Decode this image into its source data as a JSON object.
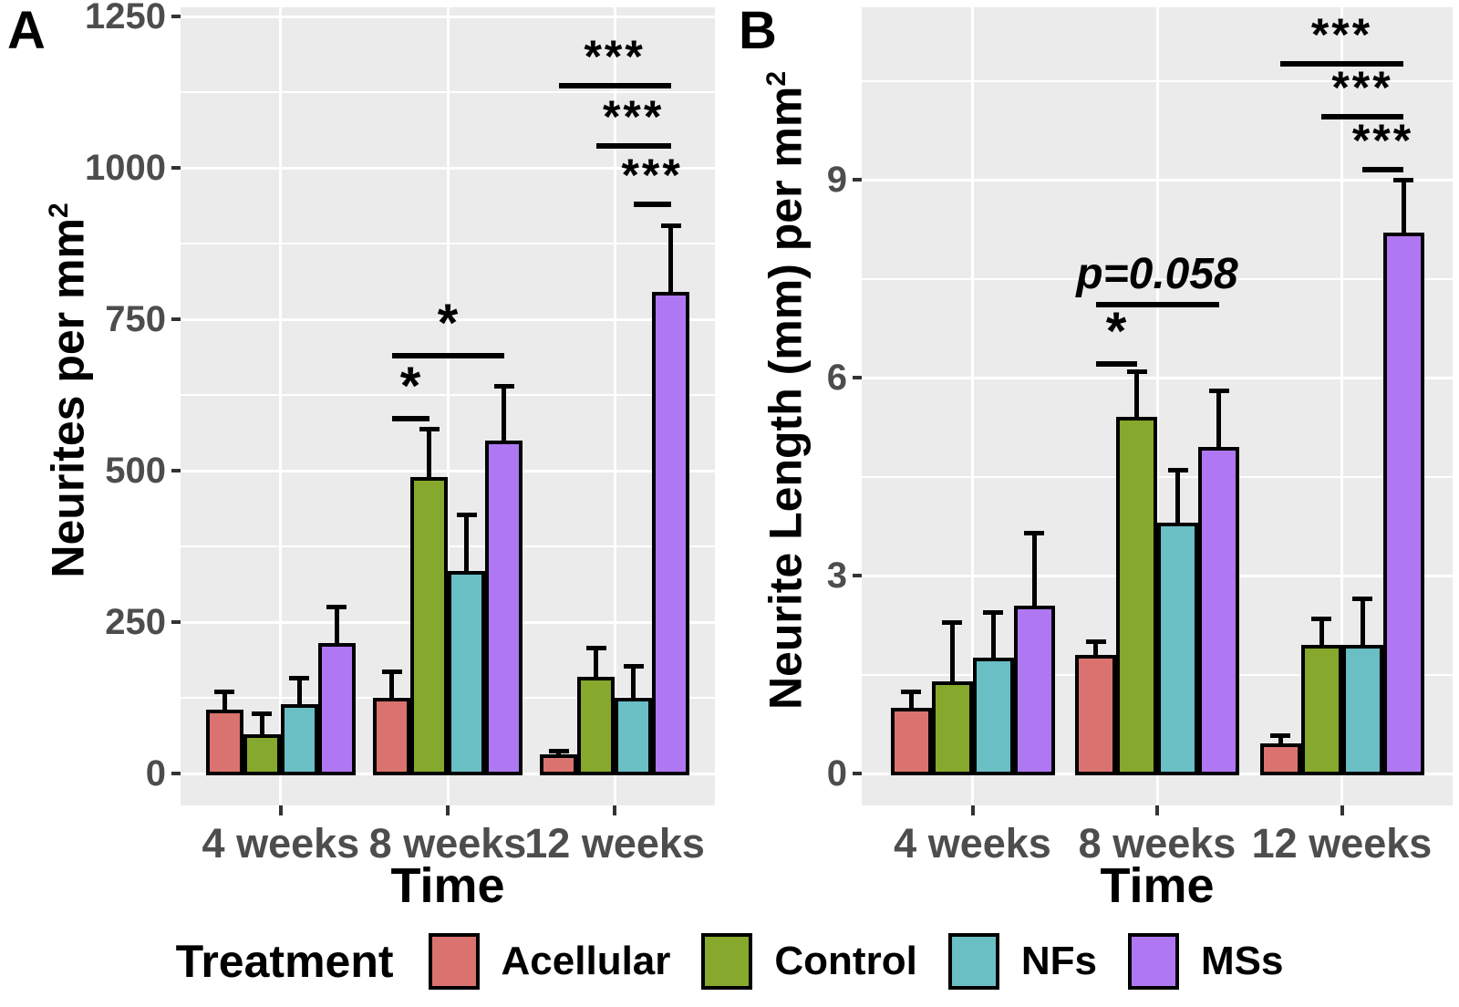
{
  "panel_letters": [
    "A",
    "B"
  ],
  "colors": {
    "panel_background": "#EBEBEB",
    "gridline": "#FFFFFF",
    "tick_text": "#4D4D4D",
    "annotation": "#000000"
  },
  "legend": {
    "title": "Treatment",
    "items": [
      {
        "label": "Acellular",
        "color": "#DA7370"
      },
      {
        "label": "Control",
        "color": "#86A82D"
      },
      {
        "label": "NFs",
        "color": "#69BFC4"
      },
      {
        "label": "MSs",
        "color": "#AF78F2"
      }
    ]
  },
  "chart_data": [
    {
      "panel": "A",
      "type": "bar",
      "title": "",
      "ylabel": "Neurites per mm²",
      "ylabel_main": "Neurites per mm",
      "ylabel_sup": "2",
      "xlabel": "Time",
      "categories": [
        "4 weeks",
        "8 weeks",
        "12 weeks"
      ],
      "series": [
        {
          "name": "Acellular",
          "color": "#DA7370",
          "values": [
            105,
            125,
            32
          ],
          "errors_upper": [
            135,
            168,
            38
          ]
        },
        {
          "name": "Control",
          "color": "#86A82D",
          "values": [
            65,
            490,
            160
          ],
          "errors_upper": [
            100,
            570,
            208
          ]
        },
        {
          "name": "NFs",
          "color": "#69BFC4",
          "values": [
            115,
            335,
            125
          ],
          "errors_upper": [
            158,
            428,
            178
          ]
        },
        {
          "name": "MSs",
          "color": "#AF78F2",
          "values": [
            215,
            550,
            795
          ],
          "errors_upper": [
            275,
            640,
            905
          ]
        }
      ],
      "ylim": [
        0,
        1265
      ],
      "yticks": [
        0,
        250,
        500,
        750,
        1000,
        1250
      ],
      "yticks_minor": [
        125,
        375,
        625,
        875,
        1125
      ],
      "grid": true,
      "legend_position": "bottom",
      "annotations": [
        {
          "label": "*",
          "category": 1,
          "bar1": 0,
          "bar2": 1,
          "y": 590
        },
        {
          "label": "*",
          "category": 1,
          "bar1": 0,
          "bar2": 3,
          "y": 695
        },
        {
          "label": "***",
          "category": 2,
          "bar1": 0,
          "bar2": 3,
          "y": 1140
        },
        {
          "label": "***",
          "category": 2,
          "bar1": 1,
          "bar2": 3,
          "y": 1040
        },
        {
          "label": "***",
          "category": 2,
          "bar1": 2,
          "bar2": 3,
          "y": 945
        }
      ]
    },
    {
      "panel": "B",
      "type": "bar",
      "title": "",
      "ylabel": "Neurite Length (mm) per mm²",
      "ylabel_main": "Neurite Length (mm) per mm",
      "ylabel_sup": "2",
      "xlabel": "Time",
      "categories": [
        "4 weeks",
        "8 weeks",
        "12 weeks"
      ],
      "series": [
        {
          "name": "Acellular",
          "color": "#DA7370",
          "values": [
            1.0,
            1.8,
            0.45
          ],
          "errors_upper": [
            1.25,
            2.0,
            0.58
          ]
        },
        {
          "name": "Control",
          "color": "#86A82D",
          "values": [
            1.4,
            5.4,
            1.95
          ],
          "errors_upper": [
            2.3,
            6.1,
            2.35
          ]
        },
        {
          "name": "NFs",
          "color": "#69BFC4",
          "values": [
            1.75,
            3.8,
            1.95
          ],
          "errors_upper": [
            2.45,
            4.6,
            2.65
          ]
        },
        {
          "name": "MSs",
          "color": "#AF78F2",
          "values": [
            2.55,
            4.95,
            8.2
          ],
          "errors_upper": [
            3.65,
            5.8,
            9.0
          ]
        }
      ],
      "ylim": [
        0,
        11.6
      ],
      "yticks": [
        0,
        3,
        6,
        9
      ],
      "yticks_minor": [
        1.5,
        4.5,
        7.5,
        10.5
      ],
      "grid": true,
      "legend_position": "bottom",
      "annotations": [
        {
          "label": "*",
          "category": 1,
          "bar1": 0,
          "bar2": 1,
          "y": 6.25
        },
        {
          "label": "p=0.058",
          "category": 1,
          "bar1": 0,
          "bar2": 3,
          "y": 7.15,
          "italic": true
        },
        {
          "label": "***",
          "category": 2,
          "bar1": 0,
          "bar2": 3,
          "y": 10.8
        },
        {
          "label": "***",
          "category": 2,
          "bar1": 1,
          "bar2": 3,
          "y": 10.0
        },
        {
          "label": "***",
          "category": 2,
          "bar1": 2,
          "bar2": 3,
          "y": 9.2
        }
      ]
    }
  ]
}
